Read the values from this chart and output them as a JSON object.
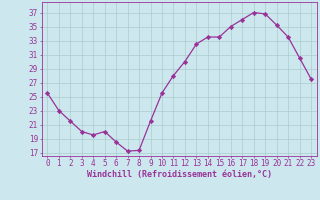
{
  "x": [
    0,
    1,
    2,
    3,
    4,
    5,
    6,
    7,
    8,
    9,
    10,
    11,
    12,
    13,
    14,
    15,
    16,
    17,
    18,
    19,
    20,
    21,
    22,
    23
  ],
  "y": [
    25.5,
    23.0,
    21.5,
    20.0,
    19.5,
    20.0,
    18.5,
    17.2,
    17.3,
    21.5,
    25.5,
    28.0,
    30.0,
    32.5,
    33.5,
    33.5,
    35.0,
    36.0,
    37.0,
    36.8,
    35.2,
    33.5,
    30.5,
    27.5
  ],
  "line_color": "#993399",
  "marker": "D",
  "marker_size": 2.2,
  "bg_color": "#cce8ee",
  "grid_color": "#aacccc",
  "xlabel": "Windchill (Refroidissement éolien,°C)",
  "yticks": [
    17,
    19,
    21,
    23,
    25,
    27,
    29,
    31,
    33,
    35,
    37
  ],
  "ylim": [
    16.5,
    38.5
  ],
  "xlim": [
    -0.5,
    23.5
  ],
  "xtick_labels": [
    "0",
    "1",
    "2",
    "3",
    "4",
    "5",
    "6",
    "7",
    "8",
    "9",
    "10",
    "11",
    "12",
    "13",
    "14",
    "15",
    "16",
    "17",
    "18",
    "19",
    "20",
    "21",
    "22",
    "23"
  ],
  "tick_fontsize": 5.5,
  "xlabel_fontsize": 6.0,
  "label_color": "#993399"
}
